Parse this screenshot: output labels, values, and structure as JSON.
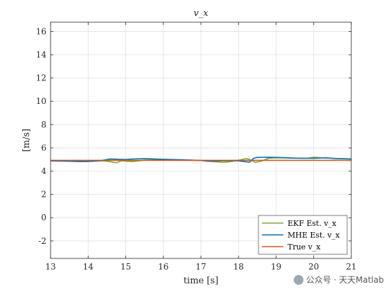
{
  "chart_data": {
    "type": "line",
    "title": "v_x",
    "xlabel": "time [s]",
    "ylabel": "[m/s]",
    "xlim": [
      13,
      21
    ],
    "ylim": [
      -3.5,
      16.8
    ],
    "xticks": [
      13,
      14,
      15,
      16,
      17,
      18,
      19,
      20,
      21
    ],
    "yticks": [
      -2,
      0,
      2,
      4,
      6,
      8,
      10,
      12,
      14,
      16
    ],
    "grid": true,
    "legend_position": "bottom-right",
    "series": [
      {
        "name": "EKF Est. v_x",
        "color": "#77AC30",
        "x": [
          13.0,
          13.5,
          14.0,
          14.3,
          14.5,
          14.6,
          14.75,
          14.9,
          15.0,
          15.2,
          15.5,
          16.0,
          16.5,
          17.0,
          17.2,
          17.4,
          17.6,
          17.8,
          18.0,
          18.2,
          18.3,
          18.45,
          18.6,
          18.8,
          19.0,
          19.5,
          19.8,
          20.0,
          20.2,
          20.5,
          21.0
        ],
        "y": [
          4.9,
          4.9,
          4.88,
          4.9,
          4.85,
          4.8,
          4.72,
          4.9,
          4.85,
          4.82,
          4.95,
          4.98,
          4.95,
          4.92,
          4.85,
          4.8,
          4.75,
          4.82,
          4.95,
          5.08,
          5.0,
          4.75,
          4.85,
          5.1,
          5.15,
          5.12,
          5.1,
          5.2,
          5.15,
          5.1,
          5.05
        ]
      },
      {
        "name": "MHE Est. v_x",
        "color": "#0072BD",
        "x": [
          13.0,
          13.5,
          13.8,
          14.0,
          14.3,
          14.5,
          14.6,
          14.8,
          15.0,
          15.2,
          15.5,
          16.0,
          16.5,
          17.0,
          17.2,
          17.5,
          17.8,
          18.0,
          18.2,
          18.3,
          18.4,
          18.5,
          18.8,
          19.0,
          19.5,
          20.0,
          20.3,
          20.6,
          21.0
        ],
        "y": [
          4.88,
          4.85,
          4.82,
          4.83,
          4.88,
          5.0,
          5.05,
          5.02,
          5.0,
          5.05,
          5.08,
          5.02,
          4.98,
          4.92,
          4.85,
          4.88,
          4.9,
          4.88,
          4.8,
          4.78,
          5.1,
          5.18,
          5.2,
          5.18,
          5.12,
          5.1,
          5.15,
          5.08,
          5.05
        ]
      },
      {
        "name": "True v_x",
        "color": "#D95319",
        "x": [
          13.0,
          21.0
        ],
        "y": [
          4.93,
          4.93
        ]
      }
    ]
  },
  "watermark": {
    "text": "公众号 · 天天Matlab"
  }
}
